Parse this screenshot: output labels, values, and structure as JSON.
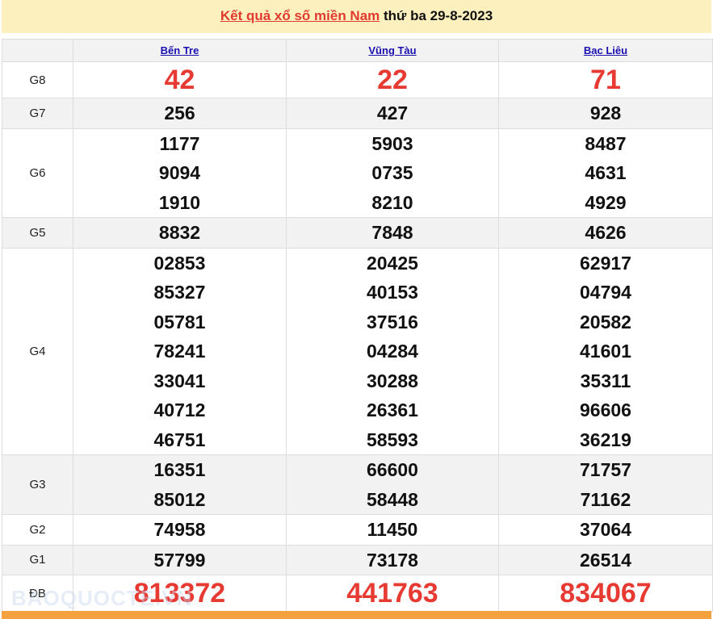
{
  "title": {
    "link": "Kết quả xổ số miền Nam",
    "rest": " thứ ba 29-8-2023"
  },
  "provinces": [
    "Bến Tre",
    "Vũng Tàu",
    "Bạc Liêu"
  ],
  "rows": [
    {
      "label": "G8",
      "big": true,
      "shade": false,
      "values": [
        [
          "42"
        ],
        [
          "22"
        ],
        [
          "71"
        ]
      ]
    },
    {
      "label": "G7",
      "shade": true,
      "values": [
        [
          "256"
        ],
        [
          "427"
        ],
        [
          "928"
        ]
      ]
    },
    {
      "label": "G6",
      "shade": false,
      "values": [
        [
          "1177",
          "9094",
          "1910"
        ],
        [
          "5903",
          "0735",
          "8210"
        ],
        [
          "8487",
          "4631",
          "4929"
        ]
      ]
    },
    {
      "label": "G5",
      "shade": true,
      "values": [
        [
          "8832"
        ],
        [
          "7848"
        ],
        [
          "4626"
        ]
      ]
    },
    {
      "label": "G4",
      "shade": false,
      "values": [
        [
          "02853",
          "85327",
          "05781",
          "78241",
          "33041",
          "40712",
          "46751"
        ],
        [
          "20425",
          "40153",
          "37516",
          "04284",
          "30288",
          "26361",
          "58593"
        ],
        [
          "62917",
          "04794",
          "20582",
          "41601",
          "35311",
          "96606",
          "36219"
        ]
      ]
    },
    {
      "label": "G3",
      "shade": true,
      "values": [
        [
          "16351",
          "85012"
        ],
        [
          "66600",
          "58448"
        ],
        [
          "71757",
          "71162"
        ]
      ]
    },
    {
      "label": "G2",
      "shade": false,
      "values": [
        [
          "74958"
        ],
        [
          "11450"
        ],
        [
          "37064"
        ]
      ]
    },
    {
      "label": "G1",
      "shade": true,
      "values": [
        [
          "57799"
        ],
        [
          "73178"
        ],
        [
          "26514"
        ]
      ]
    },
    {
      "label": "ĐB",
      "big": true,
      "shade": false,
      "values": [
        [
          "813372"
        ],
        [
          "441763"
        ],
        [
          "834067"
        ]
      ]
    }
  ],
  "watermark": "BAOQUOCTE.VN",
  "colors": {
    "accent_red": "#e63a33",
    "link_blue": "#1a10b0",
    "title_bg": "#fdf0bf",
    "footer_orange": "#f4a13f"
  }
}
